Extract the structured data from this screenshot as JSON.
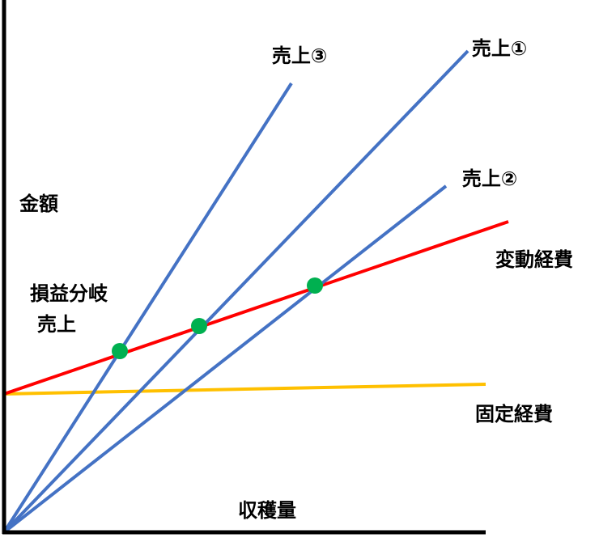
{
  "labels": {
    "sales_3": "売上③",
    "sales_1": "売上①",
    "sales_2": "売上②",
    "variable_cost": "変動経費",
    "fixed_cost": "固定経費",
    "y_axis": "金額",
    "break_even": [
      "損益分岐",
      "売上"
    ],
    "x_axis": "収穫量"
  }
}
